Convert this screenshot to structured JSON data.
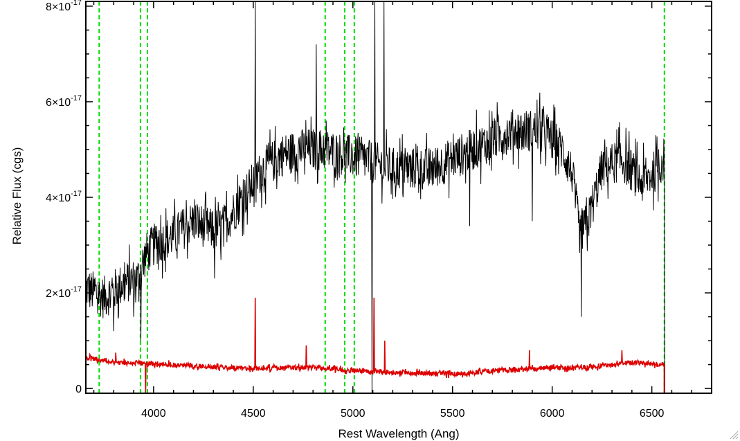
{
  "chart_data": {
    "type": "line",
    "title": "",
    "xlabel": "Rest Wavelength (Ang)",
    "ylabel": "Relative Flux (cgs)",
    "xlim": [
      3660,
      6800
    ],
    "ylim": [
      -0.1,
      8.1
    ],
    "y_scale_note": "values in units of 1e-17",
    "grid": false,
    "x_ticks": [
      {
        "value": 4000,
        "label": "4000"
      },
      {
        "value": 4500,
        "label": "4500"
      },
      {
        "value": 5000,
        "label": "5000"
      },
      {
        "value": 5500,
        "label": "5500"
      },
      {
        "value": 6000,
        "label": "6000"
      },
      {
        "value": 6500,
        "label": "6500"
      }
    ],
    "y_ticks": [
      {
        "value": 0,
        "mantissa": "0",
        "exponent": ""
      },
      {
        "value": 2,
        "mantissa": "2×10",
        "exponent": "-17"
      },
      {
        "value": 4,
        "mantissa": "4×10",
        "exponent": "-17"
      },
      {
        "value": 6,
        "mantissa": "6×10",
        "exponent": "-17"
      },
      {
        "value": 8,
        "mantissa": "8×10",
        "exponent": "-17"
      }
    ],
    "vertical_lines": {
      "color": "#00dd00",
      "style": "dashed",
      "x": [
        3727,
        3934,
        3969,
        4861,
        4959,
        5007,
        6563
      ]
    },
    "series": [
      {
        "color": "#000000",
        "noise": 0.45,
        "continuum": [
          [
            3660,
            2.1
          ],
          [
            3750,
            1.9
          ],
          [
            3850,
            2.2
          ],
          [
            3920,
            2.3
          ],
          [
            3960,
            2.8
          ],
          [
            4000,
            3.0
          ],
          [
            4100,
            3.2
          ],
          [
            4200,
            3.5
          ],
          [
            4300,
            3.3
          ],
          [
            4350,
            3.4
          ],
          [
            4450,
            4.0
          ],
          [
            4550,
            4.6
          ],
          [
            4650,
            4.9
          ],
          [
            4750,
            5.0
          ],
          [
            4850,
            5.0
          ],
          [
            4950,
            4.9
          ],
          [
            5050,
            4.8
          ],
          [
            5200,
            4.6
          ],
          [
            5400,
            4.6
          ],
          [
            5600,
            5.0
          ],
          [
            5800,
            5.4
          ],
          [
            5950,
            5.4
          ],
          [
            6050,
            5.0
          ],
          [
            6100,
            4.5
          ],
          [
            6140,
            3.2
          ],
          [
            6180,
            3.5
          ],
          [
            6250,
            4.6
          ],
          [
            6350,
            4.8
          ],
          [
            6450,
            4.3
          ],
          [
            6530,
            4.6
          ],
          [
            6560,
            4.8
          ]
        ],
        "spikes": [
          [
            3800,
            1.2
          ],
          [
            3900,
            1.5
          ],
          [
            3935,
            1.0
          ],
          [
            4305,
            2.3
          ],
          [
            4510,
            8.1
          ],
          [
            4815,
            7.2
          ],
          [
            5095,
            -0.1
          ],
          [
            5110,
            8.1
          ],
          [
            5155,
            8.1
          ],
          [
            5585,
            3.4
          ],
          [
            5900,
            3.5
          ],
          [
            6145,
            1.5
          ]
        ],
        "end_x": 6565
      },
      {
        "color": "#dd0000",
        "noise": 0.05,
        "continuum": [
          [
            3660,
            0.65
          ],
          [
            3800,
            0.55
          ],
          [
            4000,
            0.52
          ],
          [
            4300,
            0.45
          ],
          [
            4500,
            0.42
          ],
          [
            4800,
            0.44
          ],
          [
            5000,
            0.38
          ],
          [
            5200,
            0.34
          ],
          [
            5500,
            0.3
          ],
          [
            5800,
            0.4
          ],
          [
            6000,
            0.42
          ],
          [
            6200,
            0.45
          ],
          [
            6400,
            0.55
          ],
          [
            6560,
            0.5
          ]
        ],
        "spikes": [
          [
            3810,
            0.75
          ],
          [
            3960,
            -0.1
          ],
          [
            4510,
            1.9
          ],
          [
            4765,
            0.9
          ],
          [
            5105,
            1.9
          ],
          [
            5160,
            1.0
          ],
          [
            5885,
            0.8
          ],
          [
            6350,
            0.8
          ]
        ],
        "end_x": 6562
      }
    ]
  }
}
